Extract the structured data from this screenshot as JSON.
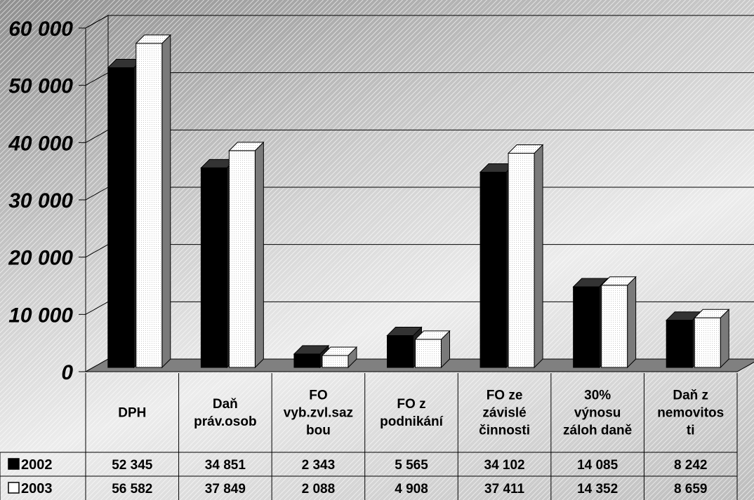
{
  "chart_data": {
    "type": "bar",
    "categories": [
      [
        "DPH"
      ],
      [
        "Daň",
        "práv.osob"
      ],
      [
        "FO",
        "vyb.zvl.saz",
        "bou"
      ],
      [
        "FO z",
        "podnikání"
      ],
      [
        "FO ze",
        "závislé",
        "činnosti"
      ],
      [
        "30%",
        "výnosu",
        "záloh daně"
      ],
      [
        "Daň z",
        "nemovitos",
        "ti"
      ]
    ],
    "series": [
      {
        "name": "2002",
        "values": [
          52345,
          34851,
          2343,
          5565,
          34102,
          14085,
          8242
        ],
        "labels": [
          "52 345",
          "34 851",
          "2 343",
          "5 565",
          "34 102",
          "14 085",
          "8 242"
        ],
        "color": "#000000"
      },
      {
        "name": "2003",
        "values": [
          56582,
          37849,
          2088,
          4908,
          37411,
          14352,
          8659
        ],
        "labels": [
          "56 582",
          "37 849",
          "2 088",
          "4 908",
          "37 411",
          "14 352",
          "8 659"
        ],
        "color": "#ffffff"
      }
    ],
    "yticks": [
      {
        "value": 0,
        "label": "0"
      },
      {
        "value": 10000,
        "label": "10 000"
      },
      {
        "value": 20000,
        "label": "20 000"
      },
      {
        "value": 30000,
        "label": "30 000"
      },
      {
        "value": 40000,
        "label": "40 000"
      },
      {
        "value": 50000,
        "label": "50 000"
      },
      {
        "value": 60000,
        "label": "60 000"
      }
    ],
    "ylim": [
      0,
      60000
    ],
    "grid": true,
    "legend": "data-table-left",
    "colors": {
      "floor": "#808080",
      "side_dark": "#222222",
      "side_light": "#7a7a7a"
    }
  }
}
